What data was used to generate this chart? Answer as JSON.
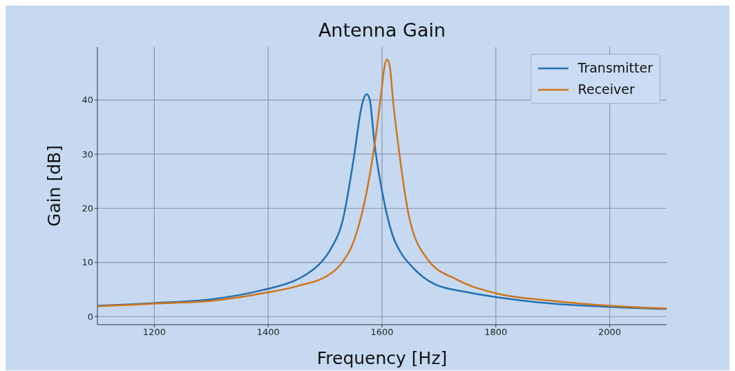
{
  "chart_data": {
    "type": "line",
    "title": "Antenna Gain",
    "xlabel": "Frequency [Hz]",
    "ylabel": "Gain [dB]",
    "xlim": [
      1100,
      2100
    ],
    "xticks": [
      1200,
      1400,
      1600,
      1800,
      2000
    ],
    "ylim": [
      -1.5,
      49.8
    ],
    "yticks": [
      0,
      10,
      20,
      30,
      40
    ],
    "grid": true,
    "legend": "top right",
    "line_style": "solid",
    "marker": "none",
    "series": [
      {
        "name": "Transmitter",
        "color": "#1f6fb4",
        "x": [
          1100,
          1200,
          1300,
          1390,
          1450,
          1470,
          1491,
          1510,
          1531,
          1551,
          1563,
          1568,
          1573,
          1578,
          1587,
          1599,
          1619,
          1635,
          1652,
          1692,
          1750,
          1800,
          1900,
          2000,
          2100
        ],
        "values": [
          2.0,
          2.5,
          3.2,
          4.9,
          6.8,
          8.0,
          9.8,
          12.5,
          17.8,
          29.7,
          38.2,
          40.3,
          41.1,
          40.3,
          31.8,
          23.8,
          14.9,
          11.5,
          9.3,
          6.0,
          4.5,
          3.6,
          2.4,
          1.8,
          1.4
        ]
      },
      {
        "name": "Receiver",
        "color": "#d07418",
        "x": [
          1100,
          1200,
          1300,
          1390,
          1450,
          1512,
          1530,
          1552,
          1572,
          1587,
          1599,
          1604,
          1609,
          1614,
          1619,
          1631,
          1647,
          1680,
          1732,
          1800,
          1900,
          2000,
          2100
        ],
        "values": [
          1.9,
          2.4,
          2.9,
          4.3,
          5.6,
          8.1,
          10.0,
          14.4,
          22.5,
          31.8,
          41.6,
          46.0,
          47.5,
          46.0,
          40.3,
          29.7,
          18.7,
          10.6,
          6.8,
          4.3,
          2.9,
          2.0,
          1.5
        ]
      }
    ]
  }
}
